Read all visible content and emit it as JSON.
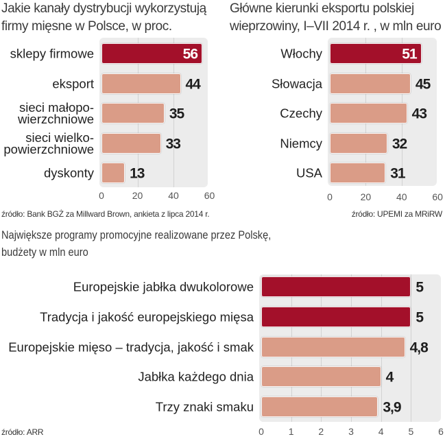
{
  "colors": {
    "highlight": "#a3102a",
    "default": "#da9c87",
    "panel": "#ececec",
    "grid": "#d2d2d2"
  },
  "chart_data": [
    {
      "type": "bar",
      "orientation": "horizontal",
      "title": "Jakie kanały dystrybucji wykorzystują\nfirmy mięsne w Polsce, w proc.",
      "categories": [
        "sklepy firmowe",
        "eksport",
        "sieci małopo-\nwierzchniowe",
        "sieci wielko-\npowierzchniowe",
        "dyskonty"
      ],
      "values": [
        56,
        44,
        35,
        33,
        13
      ],
      "value_labels": [
        "56",
        "44",
        "35",
        "33",
        "13"
      ],
      "highlight": [
        true,
        false,
        false,
        false,
        false
      ],
      "xlim": [
        0,
        60
      ],
      "xticks": [
        0,
        20,
        40,
        60
      ],
      "xlabel": "",
      "ylabel": "",
      "grid": true,
      "legend": "none",
      "source": "źródło: Bank BGŻ za Millward Brown, ankieta z lipca 2014 r."
    },
    {
      "type": "bar",
      "orientation": "horizontal",
      "title": "Główne kierunki eksportu polskiej\nwieprzowiny, I–VII 2014 r. , w mln euro",
      "categories": [
        "Włochy",
        "Słowacja",
        "Czechy",
        "Niemcy",
        "USA"
      ],
      "values": [
        51,
        45,
        43,
        32,
        31
      ],
      "value_labels": [
        "51",
        "45",
        "43",
        "32",
        "31"
      ],
      "highlight": [
        true,
        false,
        false,
        false,
        false
      ],
      "xlim": [
        0,
        60
      ],
      "xticks": [
        0,
        20,
        40,
        60
      ],
      "xlabel": "",
      "ylabel": "",
      "grid": true,
      "legend": "none",
      "source": "źródło: UPEMI za MRiRW"
    },
    {
      "type": "bar",
      "orientation": "horizontal",
      "title": "Największe programy promocyjne realizowane przez Polskę,\nbudżety w mln euro",
      "categories": [
        "Europejskie jabłka dwukolorowe",
        "Tradycja i jakość europejskiego mięsa",
        "Europejskie mięso – tradycja, jakość i smak",
        "Jabłka każdego dnia",
        "Trzy znaki smaku"
      ],
      "values": [
        5,
        5,
        4.8,
        4,
        3.9
      ],
      "value_labels": [
        "5",
        "5",
        "4,8",
        "4",
        "3,9"
      ],
      "highlight": [
        true,
        true,
        false,
        false,
        false
      ],
      "xlim": [
        0,
        6
      ],
      "xticks": [
        0,
        1,
        2,
        3,
        4,
        5,
        6
      ],
      "xlabel": "",
      "ylabel": "",
      "grid": true,
      "legend": "none",
      "source": "źródło: ARR"
    }
  ]
}
